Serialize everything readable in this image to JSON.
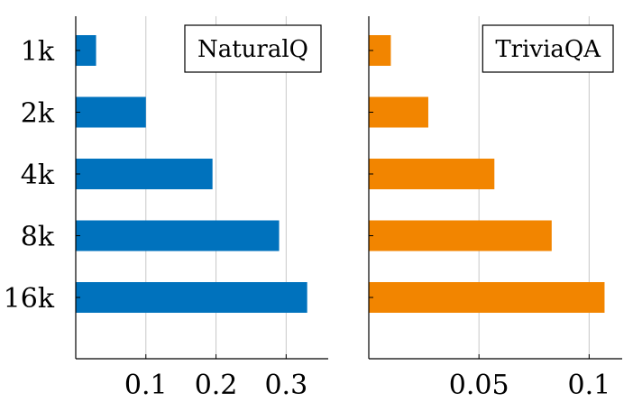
{
  "chart_data": [
    {
      "type": "bar",
      "orientation": "horizontal",
      "categories": [
        "1k",
        "2k",
        "4k",
        "8k",
        "16k"
      ],
      "values": [
        0.029,
        0.1,
        0.195,
        0.29,
        0.33
      ],
      "legend": "NaturalQ",
      "legend_position": "top-right",
      "xlim": [
        0,
        0.36
      ],
      "xticks": [
        0.1,
        0.2,
        0.3
      ],
      "xtick_labels": [
        "0.1",
        "0.2",
        "0.3"
      ],
      "color": "#0072BD",
      "grid": "vertical"
    },
    {
      "type": "bar",
      "orientation": "horizontal",
      "categories": [
        "1k",
        "2k",
        "4k",
        "8k",
        "16k"
      ],
      "values": [
        0.01,
        0.027,
        0.057,
        0.083,
        0.107
      ],
      "legend": "TriviaQA",
      "legend_position": "top-right",
      "xlim": [
        0.0,
        0.115
      ],
      "xticks": [
        0.05,
        0.1
      ],
      "xtick_labels": [
        "0.05",
        "0.1"
      ],
      "color": "#F28500",
      "grid": "vertical"
    }
  ]
}
